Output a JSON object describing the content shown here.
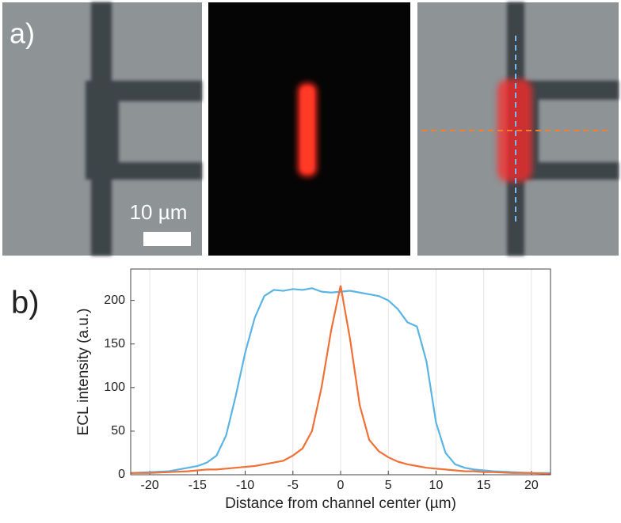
{
  "panel_a": {
    "label": "a)",
    "scale_bar": "10 µm"
  },
  "panel_b": {
    "label": "b)"
  },
  "chart_data": {
    "type": "line",
    "x_label": "Distance from channel center (µm)",
    "y_label": "ECL intensity (a.u.)",
    "x": [
      -22,
      -20,
      -18,
      -16,
      -15,
      -14,
      -13,
      -12,
      -11,
      -10,
      -9,
      -8,
      -7,
      -6,
      -5,
      -4,
      -3,
      -2,
      -1,
      0,
      1,
      2,
      3,
      4,
      5,
      6,
      7,
      8,
      9,
      10,
      11,
      12,
      13,
      14,
      15,
      16,
      18,
      20,
      22
    ],
    "series": [
      {
        "color": "#5ab4e5",
        "values": [
          2,
          3,
          4,
          8,
          10,
          14,
          22,
          45,
          90,
          140,
          180,
          205,
          212,
          211,
          213,
          212,
          214,
          210,
          209,
          210,
          211,
          209,
          207,
          205,
          200,
          190,
          175,
          170,
          130,
          60,
          25,
          12,
          8,
          6,
          5,
          4,
          3,
          2,
          2
        ]
      },
      {
        "color": "#f07035",
        "values": [
          2,
          2,
          3,
          4,
          5,
          6,
          6,
          7,
          8,
          9,
          10,
          12,
          14,
          16,
          22,
          30,
          50,
          100,
          165,
          217,
          155,
          80,
          40,
          27,
          20,
          15,
          12,
          10,
          8,
          7,
          6,
          5,
          4,
          4,
          3,
          3,
          2,
          2,
          1
        ]
      }
    ],
    "xlim": [
      -22,
      22
    ],
    "ylim": [
      0,
      236
    ],
    "xticks": [
      -20,
      -15,
      -10,
      -5,
      0,
      5,
      10,
      15,
      20
    ],
    "yticks": [
      0,
      50,
      100,
      150,
      200
    ],
    "grid": true
  }
}
